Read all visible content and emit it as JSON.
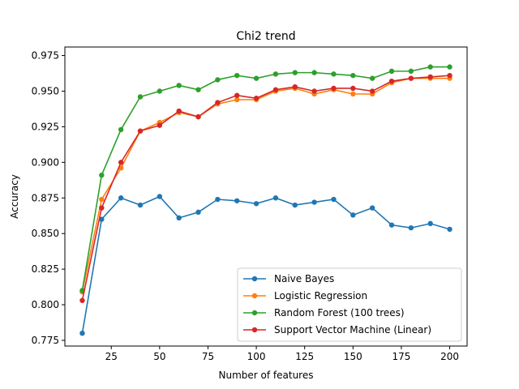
{
  "chart_data": {
    "type": "line",
    "title": "Chi2 trend",
    "xlabel": "Number of features",
    "ylabel": "Accuracy",
    "xlim": [
      1,
      209
    ],
    "ylim": [
      0.771,
      0.981
    ],
    "xticks": [
      25,
      50,
      75,
      100,
      125,
      150,
      175,
      200
    ],
    "yticks": [
      0.775,
      0.8,
      0.825,
      0.85,
      0.875,
      0.9,
      0.925,
      0.95,
      0.975
    ],
    "grid": false,
    "legend_position": "lower-right",
    "x": [
      10,
      20,
      30,
      40,
      50,
      60,
      70,
      80,
      90,
      100,
      110,
      120,
      130,
      140,
      150,
      160,
      170,
      180,
      190,
      200
    ],
    "series": [
      {
        "name": "Naive Bayes",
        "color": "#1f77b4",
        "values": [
          0.78,
          0.86,
          0.875,
          0.87,
          0.876,
          0.861,
          0.865,
          0.874,
          0.873,
          0.871,
          0.875,
          0.87,
          0.872,
          0.874,
          0.863,
          0.868,
          0.856,
          0.854,
          0.857,
          0.853
        ]
      },
      {
        "name": "Logistic Regression",
        "color": "#ff7f0e",
        "values": [
          0.809,
          0.874,
          0.896,
          0.922,
          0.928,
          0.935,
          0.932,
          0.941,
          0.944,
          0.944,
          0.95,
          0.952,
          0.948,
          0.951,
          0.948,
          0.948,
          0.956,
          0.959,
          0.959,
          0.959
        ]
      },
      {
        "name": "Random Forest (100 trees)",
        "color": "#2ca02c",
        "values": [
          0.81,
          0.891,
          0.923,
          0.946,
          0.95,
          0.954,
          0.951,
          0.958,
          0.961,
          0.959,
          0.962,
          0.963,
          0.963,
          0.962,
          0.961,
          0.959,
          0.964,
          0.964,
          0.967,
          0.967
        ]
      },
      {
        "name": "Support Vector Machine (Linear)",
        "color": "#d62728",
        "values": [
          0.803,
          0.868,
          0.9,
          0.922,
          0.926,
          0.936,
          0.932,
          0.942,
          0.947,
          0.945,
          0.951,
          0.953,
          0.95,
          0.952,
          0.952,
          0.95,
          0.957,
          0.959,
          0.96,
          0.961
        ]
      }
    ]
  }
}
